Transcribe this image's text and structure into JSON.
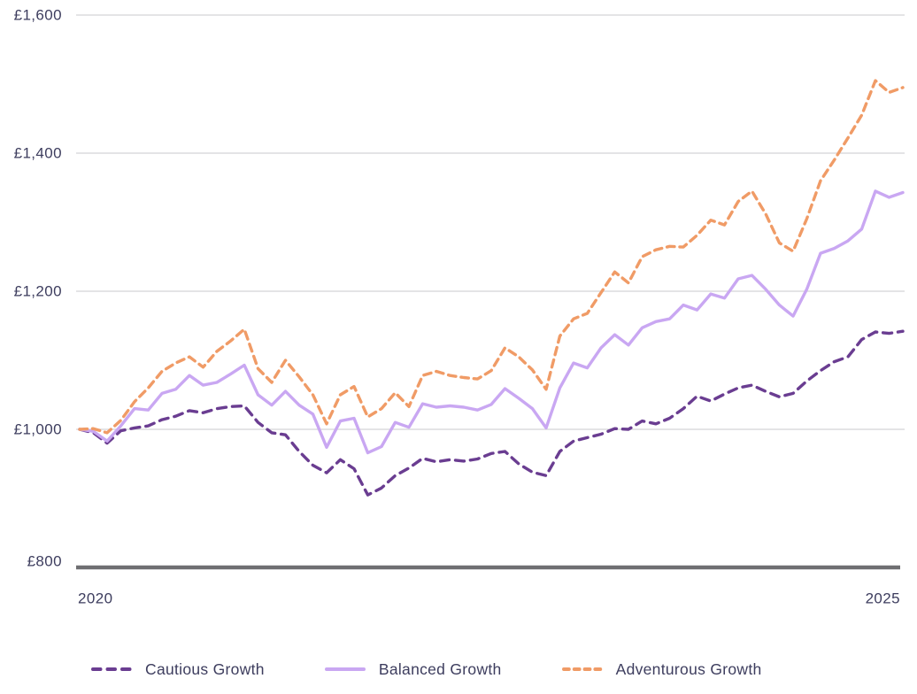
{
  "colors": {
    "background": "#ffffff",
    "text": "#3d3d5e",
    "gridline": "#dbdbde",
    "axis_line": "#6f6f72",
    "cautious": "#6a3d91",
    "balanced": "#c9a7f2",
    "adventurous": "#f09b66"
  },
  "chart_data": {
    "type": "line",
    "title": "",
    "xlabel": "",
    "ylabel": "",
    "grid": "horizontal",
    "legend_position": "bottom",
    "x_axis": {
      "ticks": [
        "2020",
        "2025"
      ],
      "range_years": [
        2020,
        2025
      ],
      "points_per_series": 61,
      "interval": "monthly"
    },
    "y_axis": {
      "ticks": [
        "£800",
        "£1,000",
        "£1,200",
        "£1,400",
        "£1,600"
      ],
      "tick_values": [
        800,
        1000,
        1200,
        1400,
        1600
      ],
      "ylim": [
        800,
        1600
      ],
      "currency": "GBP"
    },
    "series": [
      {
        "name": "Cautious Growth",
        "color": "#6a3d91",
        "style": "dashed",
        "dash": [
          10,
          7
        ],
        "values": [
          1000,
          995,
          980,
          998,
          1002,
          1005,
          1014,
          1019,
          1027,
          1024,
          1030,
          1033,
          1034,
          1010,
          995,
          992,
          968,
          948,
          937,
          956,
          943,
          905,
          915,
          933,
          944,
          958,
          953,
          956,
          954,
          957,
          965,
          968,
          950,
          938,
          933,
          968,
          983,
          988,
          993,
          1001,
          1000,
          1012,
          1008,
          1016,
          1030,
          1048,
          1041,
          1051,
          1060,
          1064,
          1055,
          1047,
          1052,
          1070,
          1085,
          1098,
          1105,
          1130,
          1141,
          1139,
          1142
        ]
      },
      {
        "name": "Balanced Growth",
        "color": "#c9a7f2",
        "style": "solid",
        "dash": null,
        "values": [
          1000,
          997,
          983,
          1005,
          1030,
          1028,
          1052,
          1058,
          1078,
          1064,
          1068,
          1080,
          1093,
          1050,
          1035,
          1055,
          1035,
          1022,
          974,
          1012,
          1016,
          966,
          975,
          1010,
          1003,
          1037,
          1032,
          1034,
          1032,
          1028,
          1036,
          1059,
          1045,
          1030,
          1002,
          1060,
          1096,
          1089,
          1118,
          1137,
          1122,
          1147,
          1156,
          1160,
          1180,
          1173,
          1196,
          1190,
          1218,
          1223,
          1203,
          1180,
          1164,
          1203,
          1255,
          1262,
          1273,
          1290,
          1345,
          1336,
          1343
        ]
      },
      {
        "name": "Adventurous Growth",
        "color": "#f09b66",
        "style": "dashed",
        "dash": [
          8.5,
          6
        ],
        "values": [
          1000,
          1001,
          995,
          1013,
          1040,
          1060,
          1084,
          1096,
          1105,
          1090,
          1113,
          1128,
          1145,
          1088,
          1068,
          1100,
          1076,
          1050,
          1008,
          1050,
          1062,
          1018,
          1030,
          1053,
          1033,
          1078,
          1084,
          1078,
          1075,
          1073,
          1085,
          1118,
          1105,
          1086,
          1058,
          1135,
          1160,
          1168,
          1198,
          1228,
          1212,
          1250,
          1260,
          1265,
          1264,
          1281,
          1303,
          1296,
          1330,
          1345,
          1312,
          1270,
          1258,
          1305,
          1360,
          1390,
          1422,
          1455,
          1505,
          1488,
          1495
        ]
      }
    ]
  }
}
